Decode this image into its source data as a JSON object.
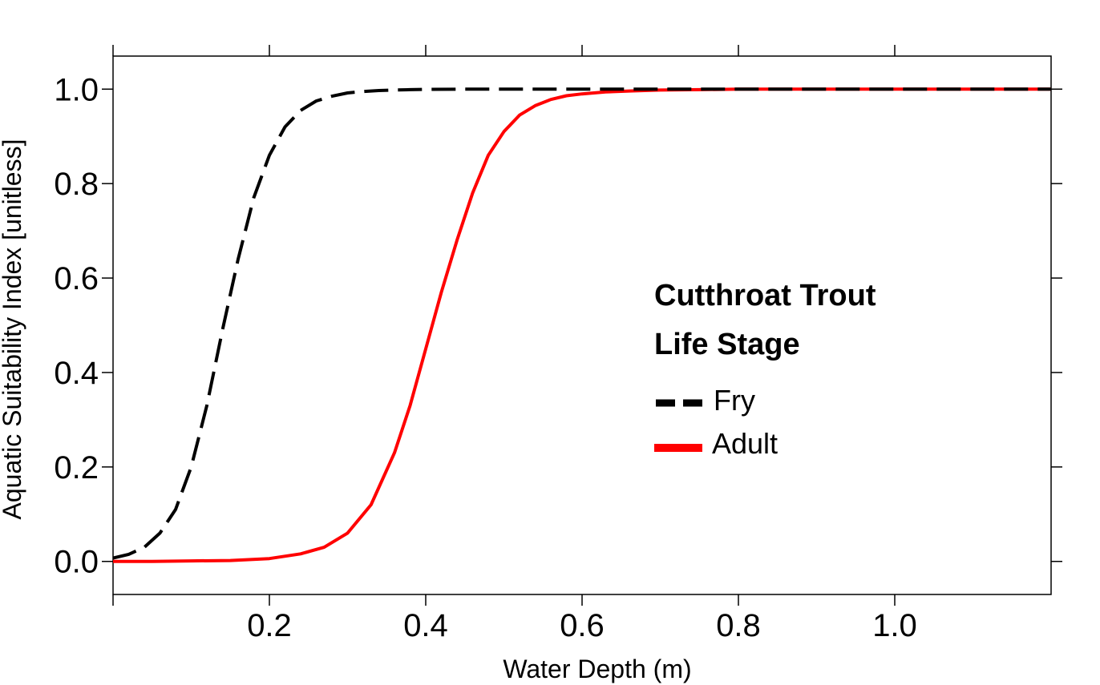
{
  "chart_data": {
    "type": "line",
    "xlabel": "Water Depth (m)",
    "ylabel": "Aquatic Suitability Index [unitless]",
    "xlim": [
      0.0,
      1.2
    ],
    "ylim": [
      -0.07,
      1.07
    ],
    "x_ticks": [
      0.2,
      0.4,
      0.6,
      0.8,
      1.0
    ],
    "x_tick_labels": [
      "0.2",
      "0.4",
      "0.6",
      "0.8",
      "1.0"
    ],
    "y_ticks": [
      0.0,
      0.2,
      0.4,
      0.6,
      0.8,
      1.0
    ],
    "y_tick_labels": [
      "0.0",
      "0.2",
      "0.4",
      "0.6",
      "0.8",
      "1.0"
    ],
    "grid": false,
    "legend": {
      "title_lines": [
        "Cutthroat Trout",
        "Life Stage"
      ],
      "position": "center-right"
    },
    "series": [
      {
        "name": "Fry",
        "color": "#000000",
        "style": "dashed",
        "x": [
          0.0,
          0.02,
          0.04,
          0.06,
          0.08,
          0.1,
          0.12,
          0.14,
          0.16,
          0.18,
          0.2,
          0.22,
          0.24,
          0.26,
          0.28,
          0.3,
          0.32,
          0.34,
          0.36,
          0.38,
          0.4,
          0.45,
          0.5,
          0.6,
          0.7,
          0.8,
          0.9,
          1.0,
          1.1,
          1.2
        ],
        "y": [
          0.007,
          0.015,
          0.03,
          0.06,
          0.11,
          0.2,
          0.33,
          0.49,
          0.64,
          0.77,
          0.86,
          0.92,
          0.955,
          0.975,
          0.985,
          0.992,
          0.995,
          0.997,
          0.998,
          0.999,
          0.9995,
          1.0,
          1.0,
          1.0,
          1.0,
          1.0,
          1.0,
          1.0,
          1.0,
          1.0
        ]
      },
      {
        "name": "Adult",
        "color": "#ff0000",
        "style": "solid",
        "x": [
          0.0,
          0.05,
          0.1,
          0.15,
          0.2,
          0.24,
          0.27,
          0.3,
          0.33,
          0.36,
          0.38,
          0.4,
          0.42,
          0.44,
          0.46,
          0.48,
          0.5,
          0.52,
          0.54,
          0.56,
          0.58,
          0.6,
          0.63,
          0.66,
          0.7,
          0.75,
          0.8,
          0.9,
          1.0,
          1.1,
          1.2
        ],
        "y": [
          0.0,
          0.0,
          0.001,
          0.002,
          0.006,
          0.016,
          0.03,
          0.06,
          0.12,
          0.23,
          0.33,
          0.45,
          0.57,
          0.68,
          0.78,
          0.86,
          0.91,
          0.945,
          0.965,
          0.978,
          0.986,
          0.99,
          0.994,
          0.996,
          0.998,
          0.999,
          1.0,
          1.0,
          1.0,
          1.0,
          1.0
        ]
      }
    ]
  }
}
